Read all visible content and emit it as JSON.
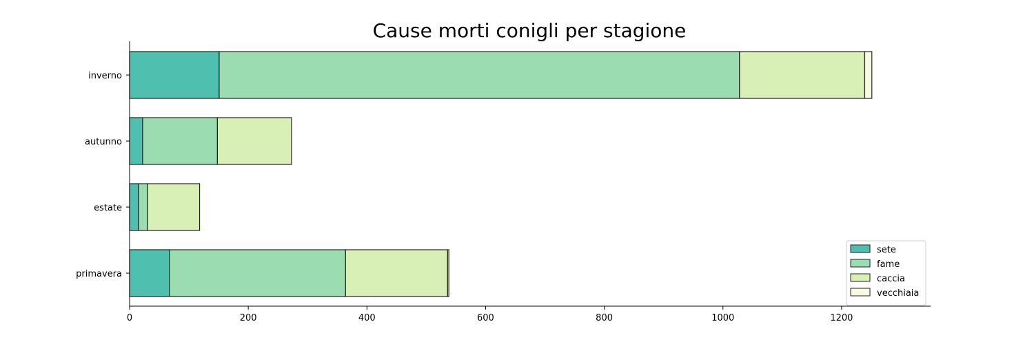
{
  "chart_data": {
    "type": "bar",
    "orientation": "horizontal",
    "stacked": true,
    "title": "Cause morti conigli per stagione",
    "xlabel": "",
    "ylabel": "",
    "categories": [
      "primavera",
      "estate",
      "autunno",
      "inverno"
    ],
    "series": [
      {
        "name": "sete",
        "values": [
          67,
          15,
          22,
          151
        ],
        "color": "#4fbfb0"
      },
      {
        "name": "fame",
        "values": [
          297,
          15,
          126,
          877
        ],
        "color": "#9bdcb0"
      },
      {
        "name": "caccia",
        "values": [
          172,
          88,
          125,
          211
        ],
        "color": "#d8f0b6"
      },
      {
        "name": "vecchiaia",
        "values": [
          2,
          0,
          0,
          12
        ],
        "color": "#f8fbdf"
      }
    ],
    "xlim": [
      0,
      1350
    ],
    "xticks": [
      0,
      200,
      400,
      600,
      800,
      1000,
      1200
    ],
    "grid": false,
    "legend_position": "bottom-right"
  }
}
